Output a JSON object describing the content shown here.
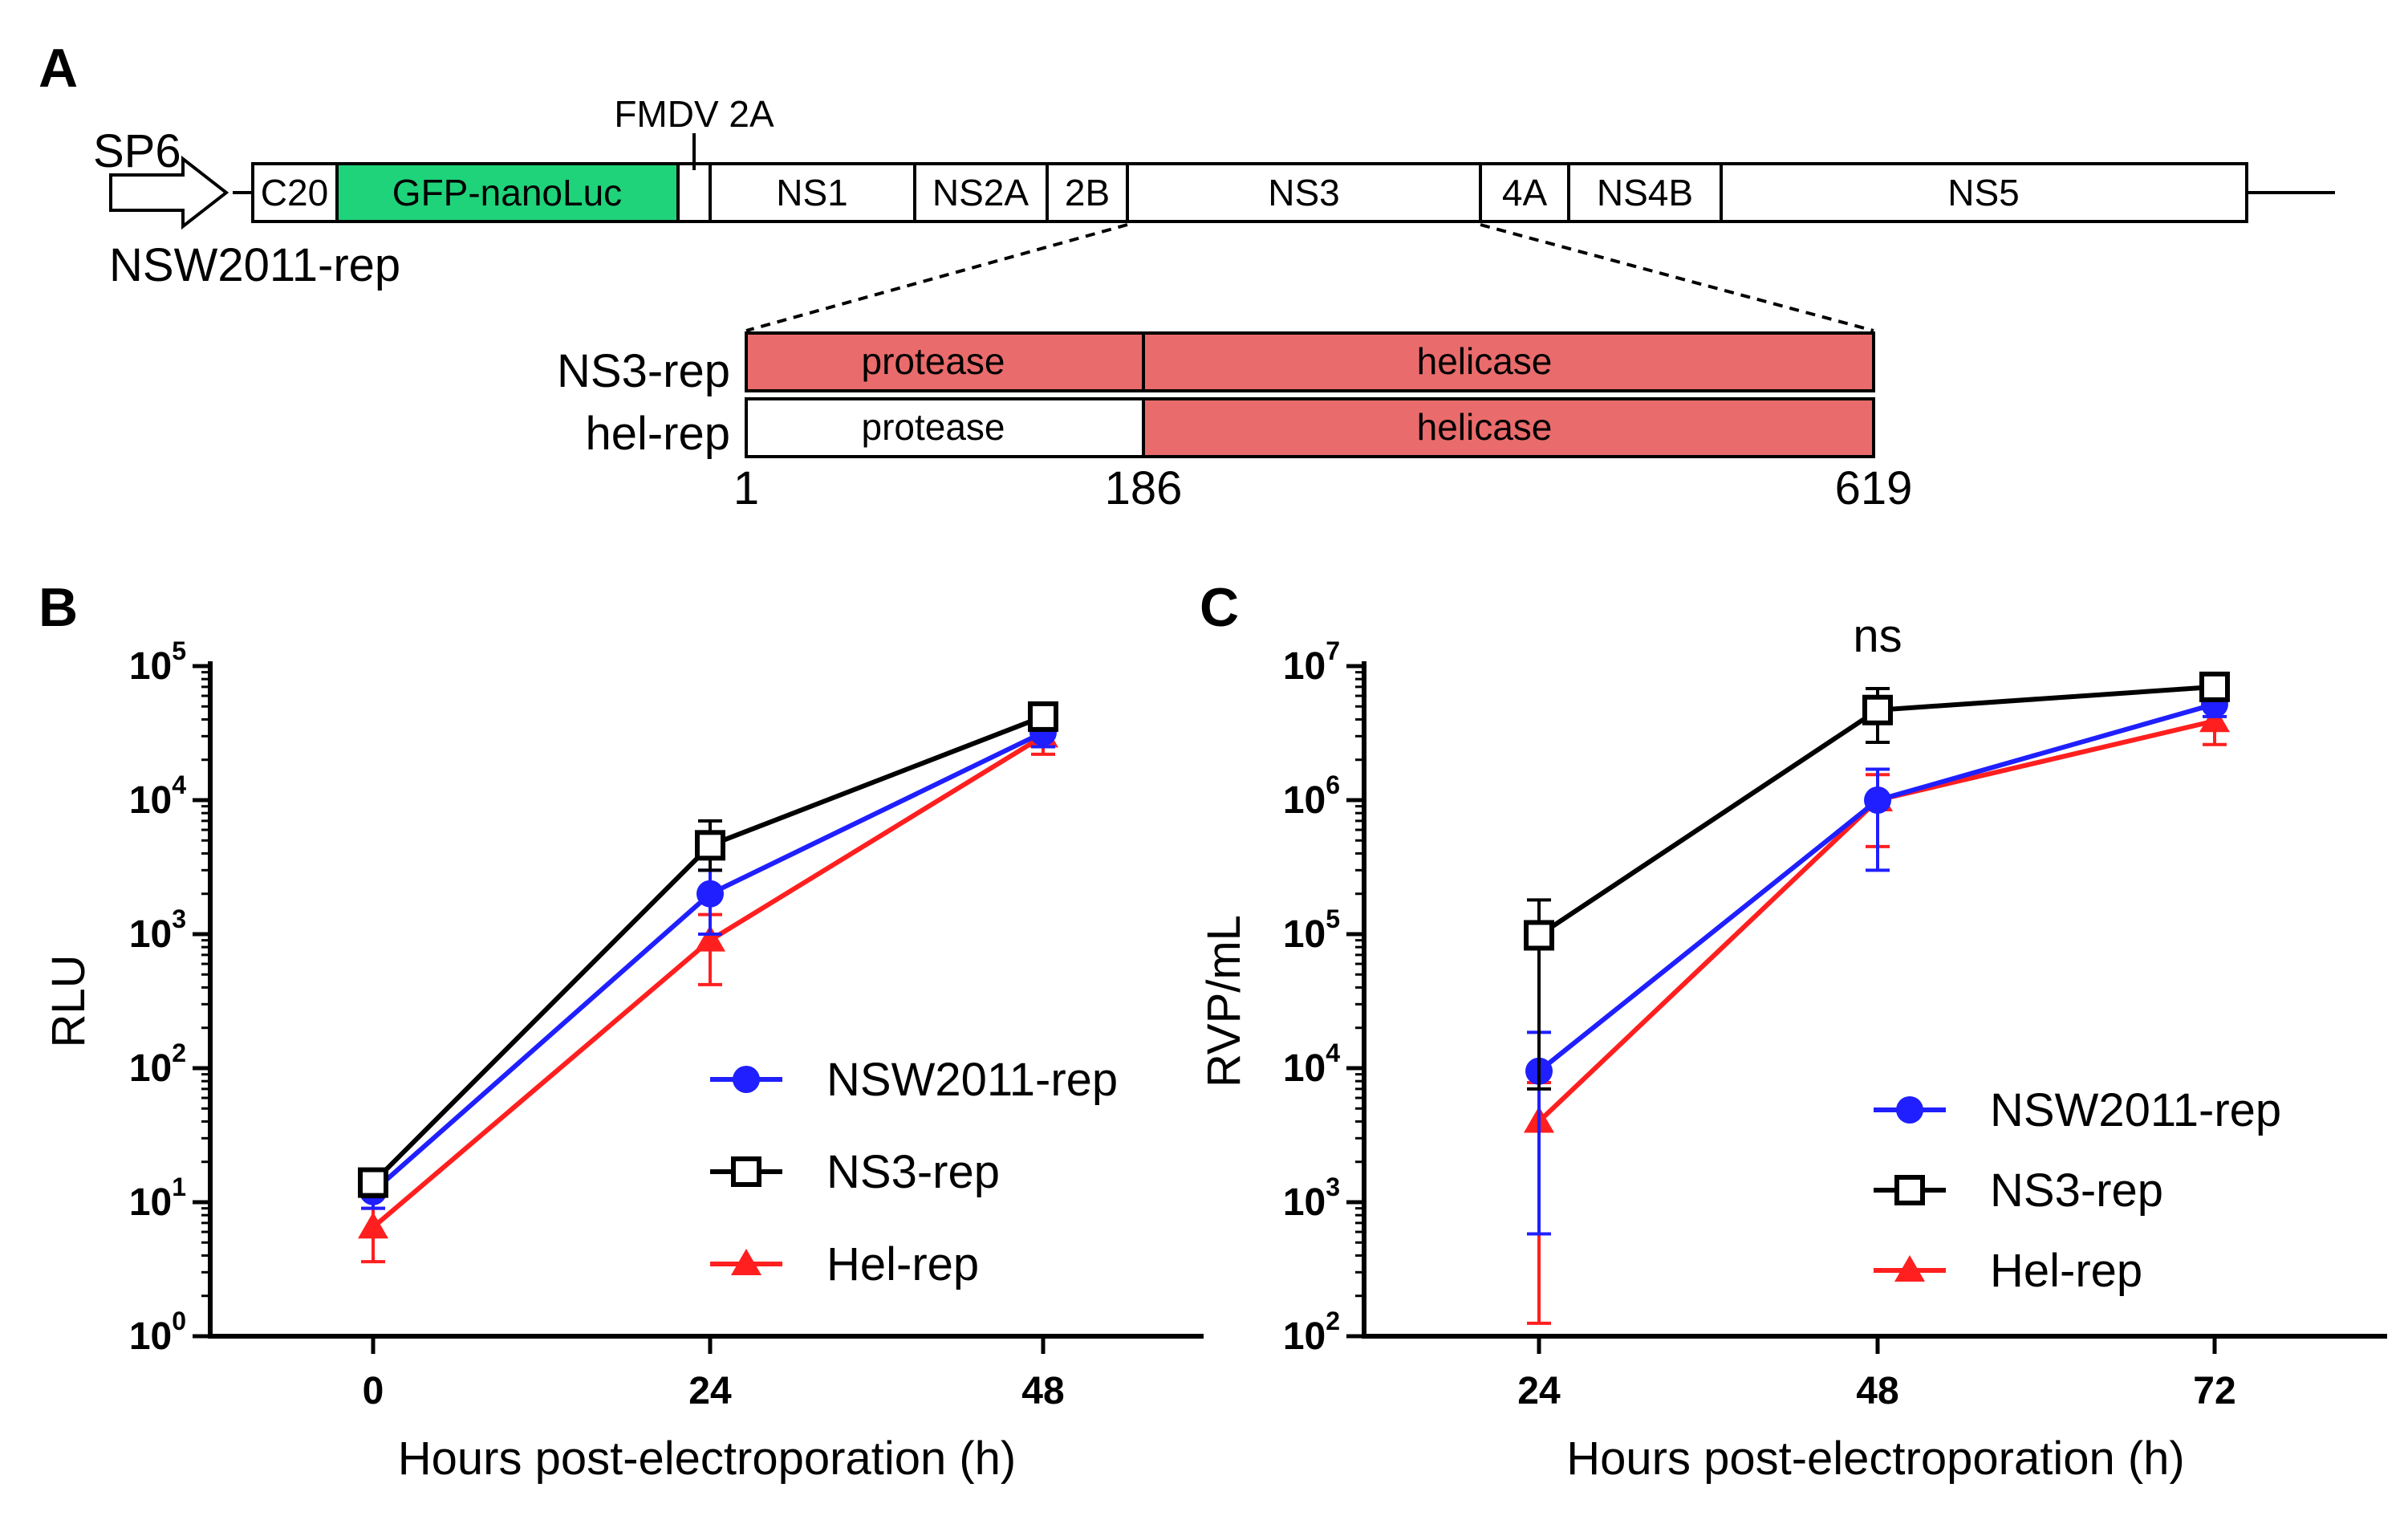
{
  "panels": {
    "a": {
      "letter": "A",
      "promoter": "SP6",
      "construct_name": "NSW2011-rep",
      "fmdv_label": "FMDV 2A",
      "segments": [
        {
          "id": "c20",
          "label": "C20",
          "fill": "#ffffff"
        },
        {
          "id": "gfp",
          "label": "GFP-nanoLuc",
          "fill": "#1fd37a"
        },
        {
          "id": "fmdv",
          "label": "",
          "fill": "#ffffff"
        },
        {
          "id": "ns1",
          "label": "NS1",
          "fill": "#ffffff"
        },
        {
          "id": "ns2a",
          "label": "NS2A",
          "fill": "#ffffff"
        },
        {
          "id": "2b",
          "label": "2B",
          "fill": "#ffffff"
        },
        {
          "id": "ns3",
          "label": "NS3",
          "fill": "#ffffff"
        },
        {
          "id": "4a",
          "label": "4A",
          "fill": "#ffffff"
        },
        {
          "id": "ns4b",
          "label": "NS4B",
          "fill": "#ffffff"
        },
        {
          "id": "ns5",
          "label": "NS5",
          "fill": "#ffffff"
        }
      ],
      "detail_rows": [
        {
          "name": "NS3-rep",
          "protease": "protease",
          "helicase": "helicase",
          "protease_fill": "#e96b6b",
          "helicase_fill": "#e96b6b"
        },
        {
          "name": "hel-rep",
          "protease": "protease",
          "helicase": "helicase",
          "protease_fill": "#ffffff",
          "helicase_fill": "#e96b6b"
        }
      ],
      "positions": [
        "1",
        "186",
        "619"
      ]
    },
    "b": {
      "letter": "B"
    },
    "c": {
      "letter": "C",
      "annotation": "ns"
    }
  },
  "chart_data": [
    {
      "type": "line",
      "id": "b",
      "title": "",
      "xlabel": "Hours post-electroporation (h)",
      "ylabel": "RLU",
      "yscale": "log",
      "ylim": [
        1,
        100000
      ],
      "y_ticks": [
        {
          "base": "10",
          "exp": "0"
        },
        {
          "base": "10",
          "exp": "1"
        },
        {
          "base": "10",
          "exp": "2"
        },
        {
          "base": "10",
          "exp": "3"
        },
        {
          "base": "10",
          "exp": "4"
        },
        {
          "base": "10",
          "exp": "5"
        }
      ],
      "x": [
        "0",
        "24",
        "48"
      ],
      "legend_position": "center-right",
      "series": [
        {
          "name": "NSW2011-rep",
          "color": "#1f1fff",
          "marker": "circle",
          "values": [
            12,
            2000,
            32000
          ],
          "err_low": [
            9,
            1000,
            25000
          ],
          "err_high": [
            15,
            3000,
            38000
          ]
        },
        {
          "name": "NS3-rep",
          "color": "#000000",
          "marker": "square-open",
          "values": [
            14,
            4600,
            42000
          ],
          "err_low": [
            11,
            3000,
            36000
          ],
          "err_high": [
            17,
            7000,
            47000
          ]
        },
        {
          "name": "Hel-rep",
          "color": "#ff1f1f",
          "marker": "triangle",
          "values": [
            6.5,
            900,
            30000
          ],
          "err_low": [
            3.6,
            420,
            22000
          ],
          "err_high": [
            9,
            1400,
            38000
          ]
        }
      ]
    },
    {
      "type": "line",
      "id": "c",
      "title": "",
      "xlabel": "Hours post-electroporation (h)",
      "ylabel": "RVP/mL",
      "yscale": "log",
      "ylim": [
        100,
        10000000
      ],
      "y_ticks": [
        {
          "base": "10",
          "exp": "2"
        },
        {
          "base": "10",
          "exp": "3"
        },
        {
          "base": "10",
          "exp": "4"
        },
        {
          "base": "10",
          "exp": "5"
        },
        {
          "base": "10",
          "exp": "6"
        },
        {
          "base": "10",
          "exp": "7"
        }
      ],
      "x": [
        "24",
        "48",
        "72"
      ],
      "legend_position": "bottom-right",
      "series": [
        {
          "name": "NSW2011-rep",
          "color": "#1f1fff",
          "marker": "circle",
          "values": [
            9500,
            1000000,
            5200000
          ],
          "err_low": [
            580,
            300000,
            4200000
          ],
          "err_high": [
            18500,
            1700000,
            6200000
          ]
        },
        {
          "name": "NS3-rep",
          "color": "#000000",
          "marker": "square-open",
          "values": [
            98000,
            4700000,
            7000000
          ],
          "err_low": [
            7000,
            2700000,
            6000000
          ],
          "err_high": [
            180000,
            6800000,
            7800000
          ]
        },
        {
          "name": "Hel-rep",
          "color": "#ff1f1f",
          "marker": "triangle",
          "values": [
            4000,
            1000000,
            3900000
          ],
          "err_low": [
            125,
            450000,
            2600000
          ],
          "err_high": [
            7800,
            1550000,
            5200000
          ]
        }
      ]
    }
  ]
}
